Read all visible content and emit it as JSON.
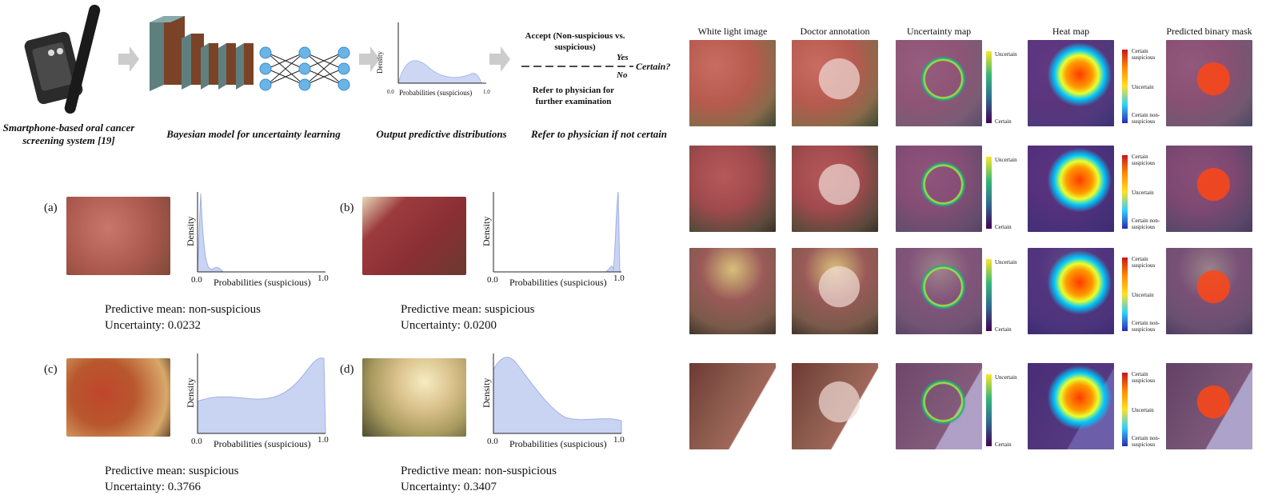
{
  "pipeline": {
    "step1_caption": "Smartphone-based oral cancer screening system [19]",
    "step2_caption": "Bayesian model for uncertainty learning",
    "step3_caption": "Output predictive distributions",
    "step4_caption": "Refer to physician if not certain",
    "density_label": "Density",
    "prob_label": "Probabilities (suspicious)",
    "tick0": "0.0",
    "tick1": "1.0",
    "accept_text": "Accept (Non-suspicious vs. suspicious)",
    "yes": "Yes",
    "no": "No",
    "certain_q": "Certain?",
    "refer_text": "Refer to physician for further examination"
  },
  "examples": [
    {
      "tag": "(a)",
      "mean": "Predictive mean: non-suspicious",
      "uncertainty": "Uncertainty: 0.0232"
    },
    {
      "tag": "(b)",
      "mean": "Predictive mean: suspicious",
      "uncertainty": "Uncertainty: 0.0200"
    },
    {
      "tag": "(c)",
      "mean": "Predictive mean: suspicious",
      "uncertainty": "Uncertainty: 0.3766"
    },
    {
      "tag": "(d)",
      "mean": "Predictive mean: non-suspicious",
      "uncertainty": "Uncertainty: 0.3407"
    }
  ],
  "axis": {
    "density": "Density",
    "prob": "Probabilities (suspicious)",
    "t0": "0.0",
    "t1": "1.0"
  },
  "grid": {
    "columns": [
      "White light image",
      "Doctor annotation",
      "Uncertainty map",
      "Heat map",
      "Predicted binary mask"
    ],
    "unc_top": "Uncertain",
    "unc_bottom": "Certain",
    "heat_top": "Certain suspicious",
    "heat_mid": "Uncertain",
    "heat_bottom": "Certain non-suspicious"
  },
  "colors": {
    "density_fill": "#c9d4f2",
    "density_line": "#9fb1e6",
    "viridis_top": "#fde725",
    "viridis_bottom": "#440154"
  }
}
